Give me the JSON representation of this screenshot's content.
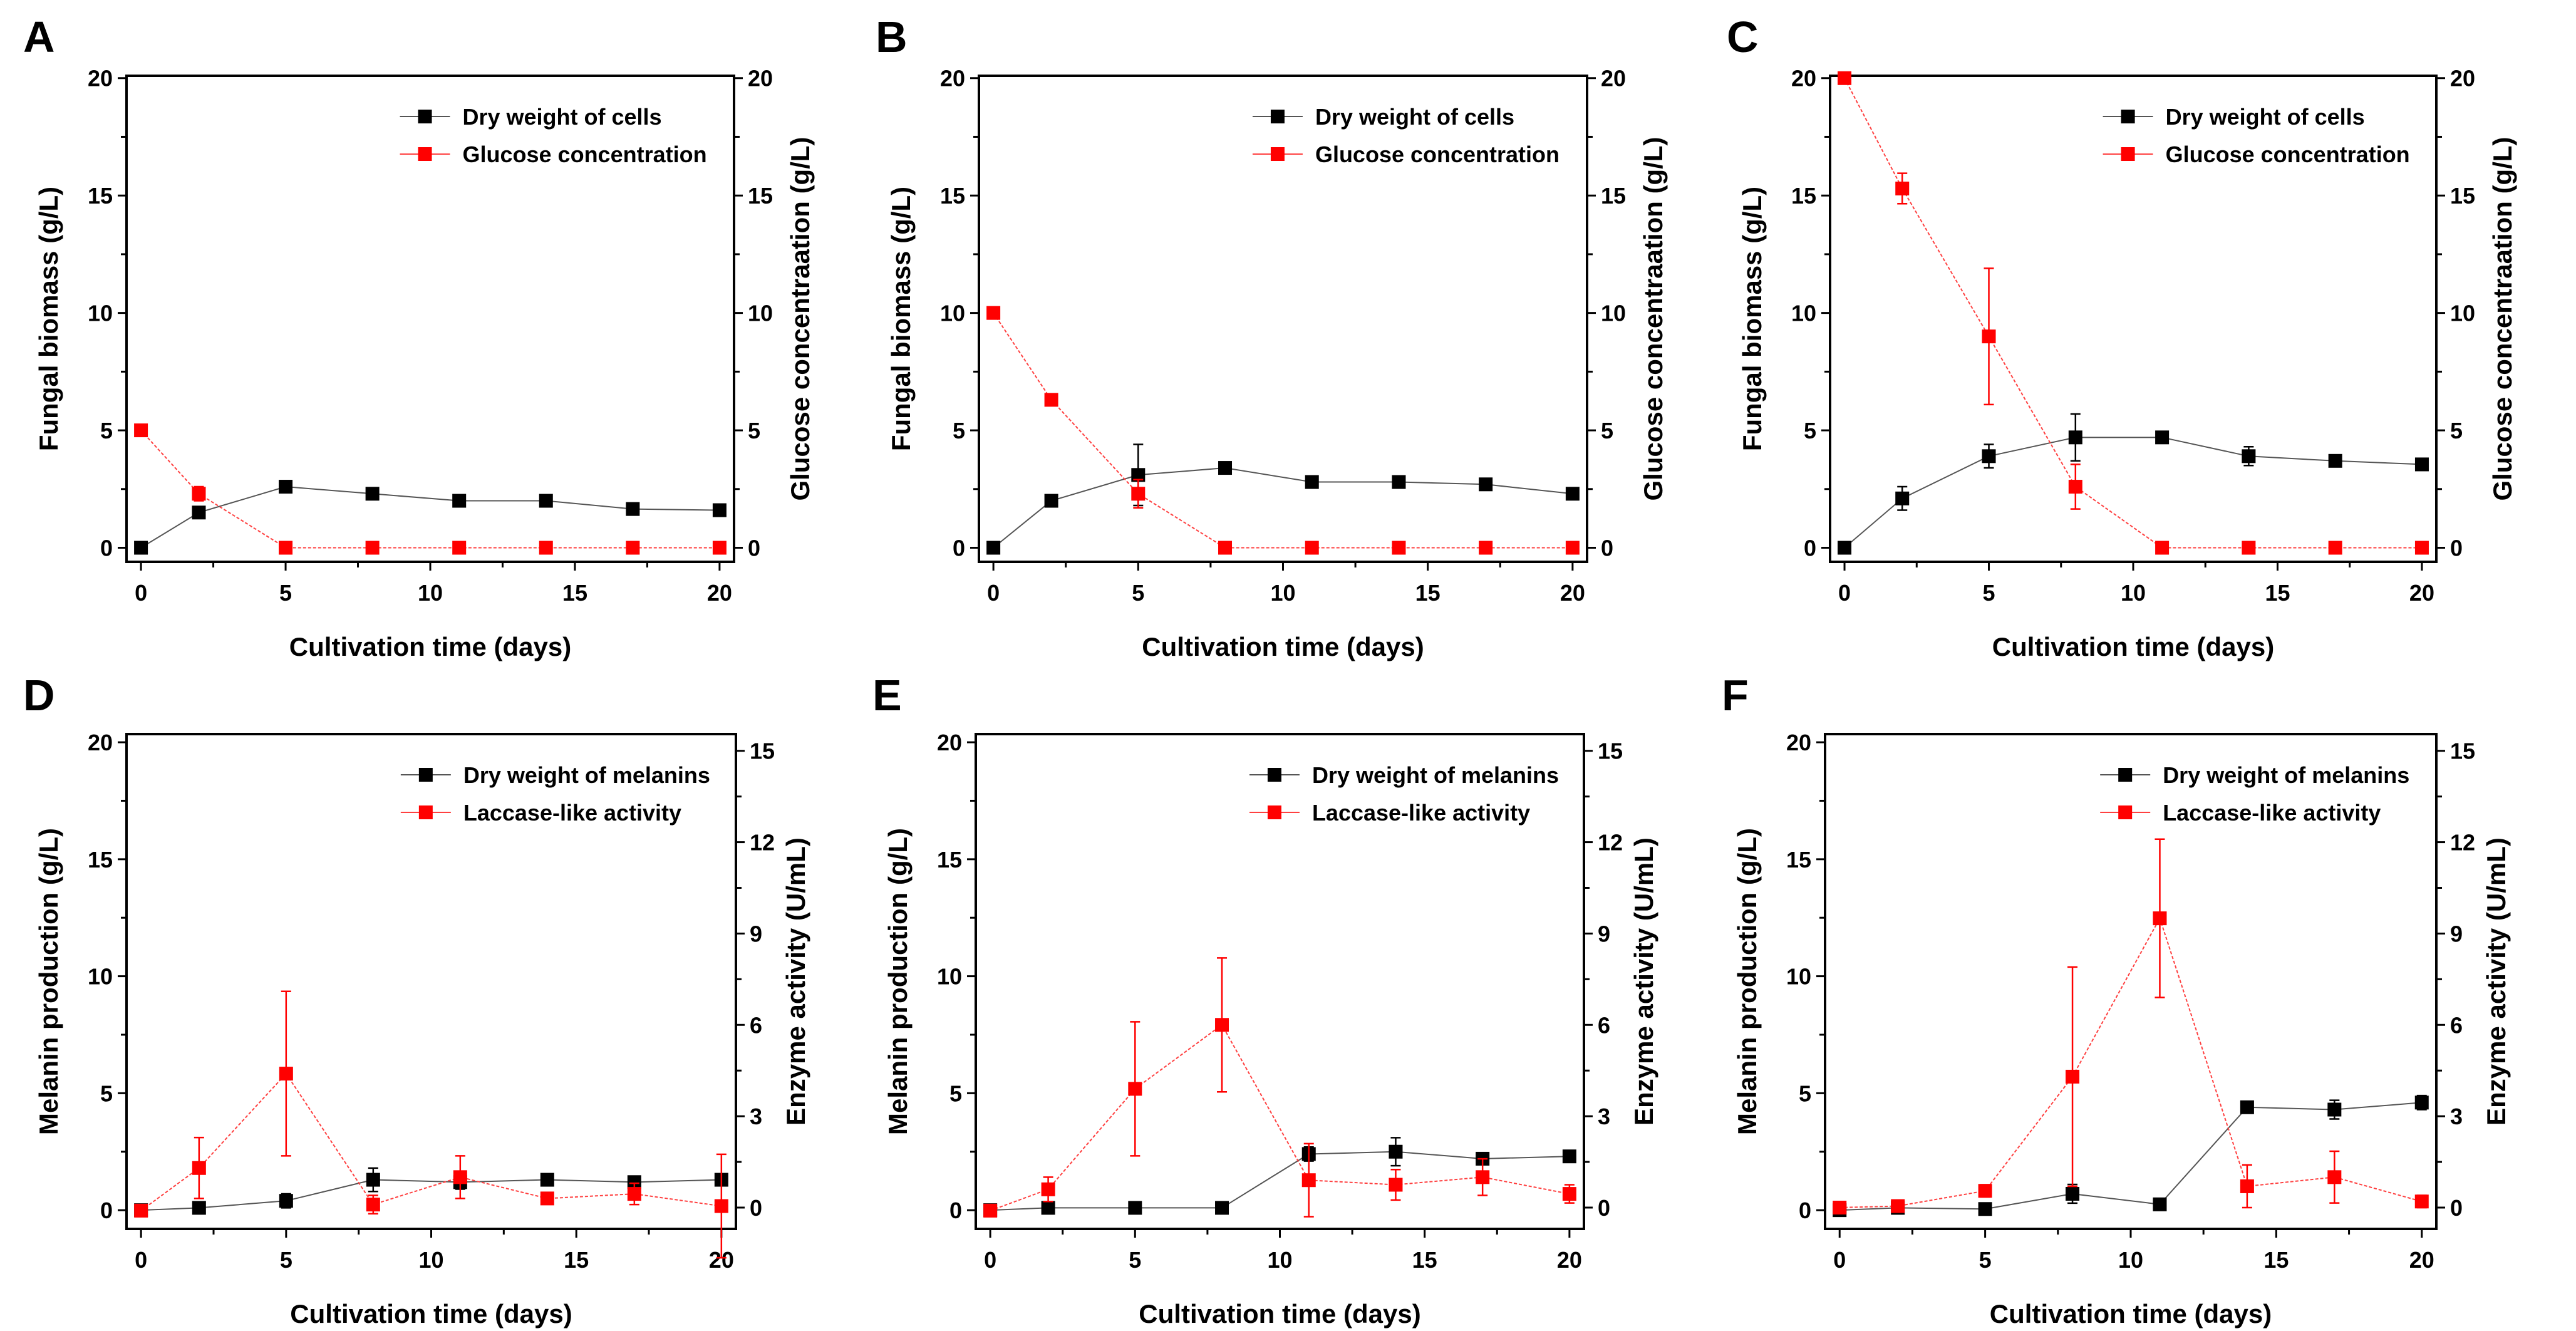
{
  "colors": {
    "series1": "#000000",
    "series2": "#ff0000",
    "line1": "#555555",
    "line2": "#ff4040"
  },
  "chart_data": [
    {
      "panel": "A",
      "type": "line",
      "xlabel": "Cultivation time (days)",
      "ylabel": "Fungal biomass (g/L)",
      "y2label": "Glucose concentraation (g/L)",
      "xticks": [
        "0",
        "5",
        "10",
        "15",
        "20"
      ],
      "yticks": [
        "0",
        "5",
        "10",
        "15",
        "20"
      ],
      "y2ticks": [
        "0",
        "5",
        "10",
        "15",
        "20"
      ],
      "xlim": [
        -0.5,
        20.5
      ],
      "ylim": [
        -0.6,
        20.1
      ],
      "y2lim": [
        -0.6,
        20.1
      ],
      "x": [
        0,
        2,
        5,
        8,
        11,
        14,
        17,
        20
      ],
      "series": [
        {
          "name": "Dry weight of cells",
          "axis": "left",
          "values": [
            0,
            1.5,
            2.6,
            2.3,
            2.0,
            2.0,
            1.65,
            1.6
          ],
          "err": [
            0,
            0.2,
            0.15,
            0.1,
            0.1,
            0.2,
            0.1,
            0.1
          ]
        },
        {
          "name": "Glucose concentration",
          "axis": "right",
          "values": [
            5,
            2.3,
            0,
            0,
            0,
            0,
            0,
            0
          ],
          "err": [
            0,
            0.3,
            0,
            0,
            0,
            0,
            0,
            0
          ]
        }
      ],
      "legend": "top-right"
    },
    {
      "panel": "B",
      "type": "line",
      "xlabel": "Cultivation time (days)",
      "ylabel": "Fungal biomass (g/L)",
      "y2label": "Glucose concentraation (g/L)",
      "xticks": [
        "0",
        "5",
        "10",
        "15",
        "20"
      ],
      "yticks": [
        "0",
        "5",
        "10",
        "15",
        "20"
      ],
      "y2ticks": [
        "0",
        "5",
        "10",
        "15",
        "20"
      ],
      "xlim": [
        -0.5,
        20.5
      ],
      "ylim": [
        -0.6,
        20.1
      ],
      "y2lim": [
        -0.6,
        20.1
      ],
      "x": [
        0,
        2,
        5,
        8,
        11,
        14,
        17,
        20
      ],
      "series": [
        {
          "name": "Dry weight of cells",
          "axis": "left",
          "values": [
            0,
            2.0,
            3.1,
            3.4,
            2.8,
            2.8,
            2.7,
            2.3
          ],
          "err": [
            0,
            0.1,
            1.3,
            0.1,
            0.1,
            0.1,
            0.1,
            0.1
          ]
        },
        {
          "name": "Glucose concentration",
          "axis": "right",
          "values": [
            10,
            6.3,
            2.3,
            0,
            0,
            0,
            0,
            0
          ],
          "err": [
            0,
            0.1,
            0.6,
            0,
            0,
            0,
            0,
            0
          ]
        }
      ],
      "legend": "top-right"
    },
    {
      "panel": "C",
      "type": "line",
      "xlabel": "Cultivation time (days)",
      "ylabel": "Fungal biomass (g/L)",
      "y2label": "Glucose concentraation (g/L)",
      "xticks": [
        "0",
        "5",
        "10",
        "15",
        "20"
      ],
      "yticks": [
        "0",
        "5",
        "10",
        "15",
        "20"
      ],
      "y2ticks": [
        "0",
        "5",
        "10",
        "15",
        "20"
      ],
      "xlim": [
        -0.5,
        20.5
      ],
      "ylim": [
        -0.6,
        20.1
      ],
      "y2lim": [
        -0.6,
        20.1
      ],
      "x": [
        0,
        2,
        5,
        8,
        11,
        14,
        17,
        20
      ],
      "series": [
        {
          "name": "Dry weight of cells",
          "axis": "left",
          "values": [
            0,
            2.1,
            3.9,
            4.7,
            4.7,
            3.9,
            3.7,
            3.55
          ],
          "err": [
            0,
            0.5,
            0.5,
            1.0,
            0.2,
            0.4,
            0.1,
            0.1
          ]
        },
        {
          "name": "Glucose concentration",
          "axis": "right",
          "values": [
            20,
            15.3,
            9.0,
            2.6,
            0,
            0,
            0,
            0
          ],
          "err": [
            0,
            0.65,
            2.9,
            0.95,
            0,
            0,
            0,
            0
          ]
        }
      ],
      "legend": "top-right"
    },
    {
      "panel": "D",
      "type": "line",
      "xlabel": "Cultivation time (days)",
      "ylabel": "Melanin production (g/L)",
      "y2label": "Enzyme activity (U/mL)",
      "xticks": [
        "0",
        "5",
        "10",
        "15",
        "20"
      ],
      "yticks": [
        "0",
        "5",
        "10",
        "15",
        "20"
      ],
      "y2ticks": [
        "0",
        "3",
        "6",
        "9",
        "12",
        "15"
      ],
      "xlim": [
        -0.5,
        20.5
      ],
      "ylim": [
        -0.8,
        20.35
      ],
      "y2lim": [
        -0.7,
        15.55
      ],
      "x": [
        0,
        2,
        5,
        8,
        11,
        14,
        17,
        20
      ],
      "series": [
        {
          "name": "Dry weight of melanins",
          "axis": "left",
          "values": [
            0,
            0.1,
            0.4,
            1.3,
            1.2,
            1.3,
            1.2,
            1.3
          ],
          "err": [
            0,
            0.05,
            0.3,
            0.5,
            0.3,
            0.2,
            0.1,
            0.1
          ]
        },
        {
          "name": "Laccase-like activity",
          "axis": "right",
          "values": [
            -0.1,
            1.3,
            4.4,
            0.1,
            1.0,
            0.3,
            0.45,
            0.05
          ],
          "err": [
            0,
            1.0,
            2.7,
            0.3,
            0.7,
            0.1,
            0.35,
            1.7
          ]
        }
      ],
      "legend": "top-right"
    },
    {
      "panel": "E",
      "type": "line",
      "xlabel": "Cultivation time (days)",
      "ylabel": "Melanin production (g/L)",
      "y2label": "Enzyme activity (U/mL)",
      "xticks": [
        "0",
        "5",
        "10",
        "15",
        "20"
      ],
      "yticks": [
        "0",
        "5",
        "10",
        "15",
        "20"
      ],
      "y2ticks": [
        "0",
        "3",
        "6",
        "9",
        "12",
        "15"
      ],
      "xlim": [
        -0.5,
        20.5
      ],
      "ylim": [
        -0.8,
        20.35
      ],
      "y2lim": [
        -0.7,
        15.55
      ],
      "x": [
        0,
        2,
        5,
        8,
        11,
        14,
        17,
        20
      ],
      "series": [
        {
          "name": "Dry weight of melanins",
          "axis": "left",
          "values": [
            0,
            0.1,
            0.1,
            0.1,
            2.4,
            2.5,
            2.2,
            2.3
          ],
          "err": [
            0,
            0,
            0,
            0,
            0.3,
            0.6,
            0.1,
            0.1
          ]
        },
        {
          "name": "Laccase-like activity",
          "axis": "right",
          "values": [
            -0.1,
            0.6,
            3.9,
            6.0,
            0.9,
            0.75,
            1.0,
            0.45
          ],
          "err": [
            0,
            0.4,
            2.2,
            2.2,
            1.2,
            0.5,
            0.6,
            0.3
          ]
        }
      ],
      "legend": "top-right"
    },
    {
      "panel": "F",
      "type": "line",
      "xlabel": "Cultivation time (days)",
      "ylabel": "Melanin production (g/L)",
      "y2label": "Enzyme activity (U/mL)",
      "xticks": [
        "0",
        "5",
        "10",
        "15",
        "20"
      ],
      "yticks": [
        "0",
        "5",
        "10",
        "15",
        "20"
      ],
      "y2ticks": [
        "0",
        "3",
        "6",
        "9",
        "12",
        "15"
      ],
      "xlim": [
        -0.5,
        20.5
      ],
      "ylim": [
        -0.8,
        20.35
      ],
      "y2lim": [
        -0.7,
        15.55
      ],
      "x": [
        0,
        2,
        5,
        8,
        11,
        14,
        17,
        20
      ],
      "series": [
        {
          "name": "Dry weight of melanins",
          "axis": "left",
          "values": [
            0,
            0.1,
            0.05,
            0.7,
            0.25,
            4.4,
            4.3,
            4.6
          ],
          "err": [
            0,
            0,
            0,
            0.4,
            0,
            0.1,
            0.4,
            0.3
          ]
        },
        {
          "name": "Laccase-like activity",
          "axis": "right",
          "values": [
            0,
            0.05,
            0.55,
            4.3,
            9.5,
            0.7,
            1.0,
            0.2
          ],
          "err": [
            0,
            0.05,
            0.2,
            3.6,
            2.6,
            0.7,
            0.85,
            0.2
          ]
        }
      ],
      "legend": "top-right"
    }
  ]
}
